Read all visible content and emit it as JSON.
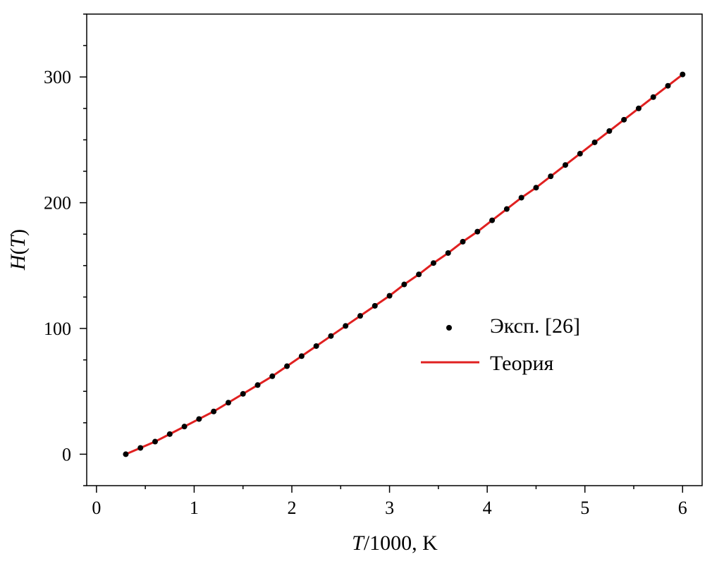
{
  "chart_data": {
    "type": "line",
    "title": "",
    "xlabel_italic": "T",
    "xlabel_rest": "/1000, K",
    "ylabel_italic_1": "H",
    "ylabel_paren_open": "(",
    "ylabel_italic_2": "T",
    "ylabel_paren_close": ")",
    "xlim": [
      -0.1,
      6.2
    ],
    "ylim": [
      -25,
      350
    ],
    "xticks": [
      0,
      1,
      2,
      3,
      4,
      5,
      6
    ],
    "xtick_labels": [
      "0",
      "1",
      "2",
      "3",
      "4",
      "5",
      "6"
    ],
    "x_minor_ticks": [
      0.5,
      1.5,
      2.5,
      3.5,
      4.5,
      5.5
    ],
    "yticks": [
      0,
      100,
      200,
      300
    ],
    "ytick_labels": [
      "0",
      "100",
      "200",
      "300"
    ],
    "y_minor_ticks": [
      -25,
      25,
      50,
      75,
      125,
      150,
      175,
      225,
      250,
      275,
      325,
      350
    ],
    "grid": false,
    "legend_position": "center-right",
    "colors": {
      "theory": "#e02020",
      "experiment": "#000000"
    },
    "series": [
      {
        "name": "Эксп. [26]",
        "kind": "scatter",
        "x": [
          0.3,
          0.45,
          0.6,
          0.75,
          0.9,
          1.05,
          1.2,
          1.35,
          1.5,
          1.65,
          1.8,
          1.95,
          2.1,
          2.25,
          2.4,
          2.55,
          2.7,
          2.85,
          3.0,
          3.15,
          3.3,
          3.45,
          3.6,
          3.75,
          3.9,
          4.05,
          4.2,
          4.35,
          4.5,
          4.65,
          4.8,
          4.95,
          5.1,
          5.25,
          5.4,
          5.55,
          5.7,
          5.85,
          6.0
        ],
        "y": [
          0,
          5,
          10,
          16,
          22,
          28,
          34,
          41,
          48,
          55,
          62,
          70,
          78,
          86,
          94,
          102,
          110,
          118,
          126,
          135,
          143,
          152,
          160,
          169,
          177,
          186,
          195,
          204,
          212,
          221,
          230,
          239,
          248,
          257,
          266,
          275,
          284,
          293,
          302
        ]
      },
      {
        "name": "Теория",
        "kind": "line",
        "x": [
          0.3,
          0.45,
          0.6,
          0.75,
          0.9,
          1.05,
          1.2,
          1.35,
          1.5,
          1.65,
          1.8,
          1.95,
          2.1,
          2.25,
          2.4,
          2.55,
          2.7,
          2.85,
          3.0,
          3.15,
          3.3,
          3.45,
          3.6,
          3.75,
          3.9,
          4.05,
          4.2,
          4.35,
          4.5,
          4.65,
          4.8,
          4.95,
          5.1,
          5.25,
          5.4,
          5.55,
          5.7,
          5.85,
          6.0
        ],
        "y": [
          0,
          5,
          10,
          16,
          22,
          28,
          34,
          41,
          48,
          55,
          62,
          70,
          78,
          86,
          94,
          102,
          110,
          118,
          126,
          135,
          143,
          152,
          160,
          169,
          177,
          186,
          195,
          204,
          212,
          221,
          230,
          239,
          248,
          257,
          266,
          275,
          284,
          293,
          302
        ]
      }
    ]
  }
}
